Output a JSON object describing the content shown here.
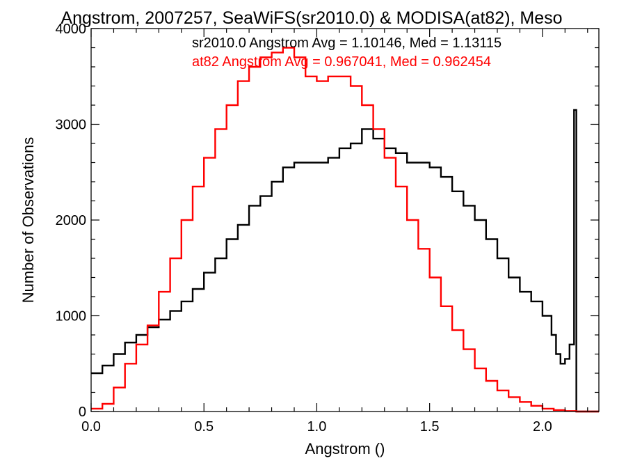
{
  "chart_data": {
    "type": "line",
    "step": true,
    "title": "Angstrom, 2007257, SeaWiFS(sr2010.0) & MODISA(at82), Meso",
    "xlabel": "Angstrom ()",
    "ylabel": "Number of Observations",
    "xlim": [
      0.0,
      2.25
    ],
    "ylim": [
      0,
      4000
    ],
    "x_major_ticks": [
      0.0,
      0.5,
      1.0,
      1.5,
      2.0
    ],
    "x_tick_labels": [
      "0.0",
      "0.5",
      "1.0",
      "1.5",
      "2.0"
    ],
    "y_major_ticks": [
      0,
      1000,
      2000,
      3000,
      4000
    ],
    "y_tick_labels": [
      "0",
      "1000",
      "2000",
      "3000",
      "4000"
    ],
    "grid": false,
    "legend_position": "top",
    "annotations": [
      {
        "text": "sr2010.0 Angstrom Avg = 1.10146, Med = 1.13115",
        "color": "#000000"
      },
      {
        "text": "at82 Angstrom Avg = 0.967041, Med = 0.962454",
        "color": "#ff0000"
      }
    ],
    "series": [
      {
        "color": "#000000",
        "x": [
          0.0,
          0.05,
          0.1,
          0.15,
          0.2,
          0.25,
          0.3,
          0.35,
          0.4,
          0.45,
          0.5,
          0.55,
          0.6,
          0.65,
          0.7,
          0.75,
          0.8,
          0.85,
          0.9,
          0.95,
          1.0,
          1.05,
          1.1,
          1.15,
          1.2,
          1.25,
          1.3,
          1.35,
          1.4,
          1.45,
          1.5,
          1.55,
          1.6,
          1.65,
          1.7,
          1.75,
          1.8,
          1.85,
          1.9,
          1.95,
          2.0,
          2.04,
          2.06,
          2.08,
          2.1,
          2.12,
          2.14,
          2.15,
          2.16,
          2.2,
          2.25
        ],
        "values": [
          400,
          480,
          600,
          720,
          800,
          880,
          960,
          1050,
          1150,
          1280,
          1450,
          1600,
          1800,
          1950,
          2150,
          2250,
          2400,
          2550,
          2600,
          2600,
          2600,
          2650,
          2750,
          2800,
          2950,
          2850,
          2750,
          2700,
          2600,
          2600,
          2550,
          2450,
          2300,
          2150,
          2000,
          1800,
          1600,
          1400,
          1250,
          1150,
          1000,
          800,
          600,
          500,
          550,
          700,
          3150,
          0,
          0,
          0,
          0
        ]
      },
      {
        "color": "#ff0000",
        "x": [
          0.0,
          0.05,
          0.1,
          0.15,
          0.2,
          0.25,
          0.3,
          0.35,
          0.4,
          0.45,
          0.5,
          0.55,
          0.6,
          0.65,
          0.7,
          0.75,
          0.8,
          0.85,
          0.9,
          0.95,
          1.0,
          1.05,
          1.1,
          1.15,
          1.2,
          1.25,
          1.3,
          1.35,
          1.4,
          1.45,
          1.5,
          1.55,
          1.6,
          1.65,
          1.7,
          1.75,
          1.8,
          1.85,
          1.9,
          1.95,
          2.0,
          2.05,
          2.1,
          2.15,
          2.2,
          2.25
        ],
        "values": [
          30,
          80,
          250,
          500,
          700,
          900,
          1250,
          1600,
          2000,
          2350,
          2650,
          2950,
          3200,
          3450,
          3600,
          3700,
          3750,
          3800,
          3700,
          3500,
          3450,
          3500,
          3500,
          3400,
          3200,
          2950,
          2650,
          2350,
          2000,
          1700,
          1400,
          1100,
          850,
          650,
          450,
          320,
          220,
          150,
          100,
          60,
          30,
          15,
          5,
          0,
          0,
          0
        ]
      }
    ]
  }
}
